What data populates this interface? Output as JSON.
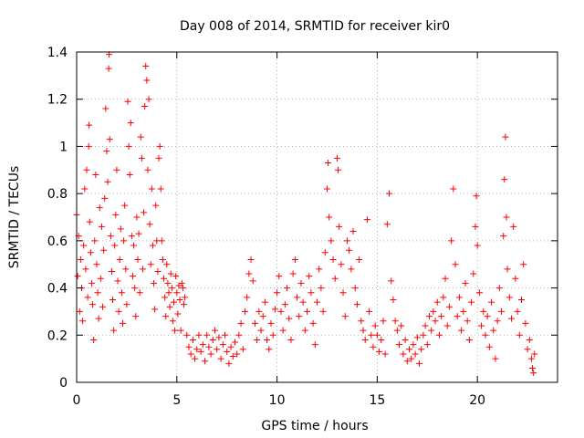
{
  "chart_data": {
    "type": "scatter",
    "title": "Day 008 of 2014, SRMTID for receiver kir0",
    "xlabel": "GPS time / hours",
    "ylabel": "SRMTID / TECUs",
    "xlim": [
      0,
      24
    ],
    "ylim": [
      0,
      1.4
    ],
    "xticks": [
      0,
      5,
      10,
      15,
      20
    ],
    "xtick_labels": [
      "0",
      "5",
      "10",
      "15",
      "20"
    ],
    "yticks": [
      0,
      0.2,
      0.4,
      0.6,
      0.8,
      1,
      1.2,
      1.4
    ],
    "ytick_labels": [
      "0",
      "0.2",
      "0.4",
      "0.6",
      "0.8",
      "1",
      "1.2",
      "1.4"
    ],
    "grid": true,
    "marker": "+",
    "color": "#ff0000",
    "series": [
      {
        "name": "SRMTID",
        "points": [
          [
            0.0,
            0.71
          ],
          [
            0.05,
            0.45
          ],
          [
            0.1,
            0.62
          ],
          [
            0.15,
            0.3
          ],
          [
            0.2,
            0.52
          ],
          [
            0.25,
            0.4
          ],
          [
            0.3,
            0.26
          ],
          [
            0.35,
            0.58
          ],
          [
            0.4,
            0.82
          ],
          [
            0.45,
            0.48
          ],
          [
            0.5,
            0.9
          ],
          [
            0.55,
            0.36
          ],
          [
            0.6,
            1.0
          ],
          [
            0.62,
            1.09
          ],
          [
            0.65,
            0.68
          ],
          [
            0.7,
            0.55
          ],
          [
            0.75,
            0.42
          ],
          [
            0.8,
            0.33
          ],
          [
            0.85,
            0.18
          ],
          [
            0.9,
            0.6
          ],
          [
            0.95,
            0.88
          ],
          [
            1.0,
            0.5
          ],
          [
            1.05,
            0.38
          ],
          [
            1.1,
            0.27
          ],
          [
            1.15,
            0.74
          ],
          [
            1.2,
            0.44
          ],
          [
            1.25,
            0.66
          ],
          [
            1.3,
            0.32
          ],
          [
            1.35,
            0.56
          ],
          [
            1.4,
            0.78
          ],
          [
            1.45,
            1.16
          ],
          [
            1.5,
            0.98
          ],
          [
            1.55,
            0.85
          ],
          [
            1.6,
            1.33
          ],
          [
            1.62,
            1.39
          ],
          [
            1.65,
            1.03
          ],
          [
            1.7,
            0.62
          ],
          [
            1.75,
            0.47
          ],
          [
            1.8,
            0.35
          ],
          [
            1.85,
            0.22
          ],
          [
            1.9,
            0.58
          ],
          [
            1.95,
            0.71
          ],
          [
            2.0,
            0.9
          ],
          [
            2.05,
            0.43
          ],
          [
            2.1,
            0.3
          ],
          [
            2.15,
            0.52
          ],
          [
            2.2,
            0.65
          ],
          [
            2.25,
            0.38
          ],
          [
            2.3,
            0.25
          ],
          [
            2.35,
            0.6
          ],
          [
            2.4,
            0.75
          ],
          [
            2.45,
            0.48
          ],
          [
            2.5,
            0.33
          ],
          [
            2.55,
            1.19
          ],
          [
            2.6,
            1.0
          ],
          [
            2.65,
            0.88
          ],
          [
            2.7,
            1.1
          ],
          [
            2.75,
            0.62
          ],
          [
            2.8,
            0.45
          ],
          [
            2.85,
            0.58
          ],
          [
            2.9,
            0.4
          ],
          [
            2.95,
            0.28
          ],
          [
            3.0,
            0.7
          ],
          [
            3.05,
            0.52
          ],
          [
            3.1,
            0.63
          ],
          [
            3.15,
            0.38
          ],
          [
            3.2,
            1.04
          ],
          [
            3.25,
            0.95
          ],
          [
            3.3,
            0.48
          ],
          [
            3.35,
            0.72
          ],
          [
            3.4,
            1.17
          ],
          [
            3.45,
            1.34
          ],
          [
            3.5,
            1.28
          ],
          [
            3.55,
            0.9
          ],
          [
            3.6,
            1.2
          ],
          [
            3.65,
            0.67
          ],
          [
            3.7,
            0.5
          ],
          [
            3.75,
            0.82
          ],
          [
            3.8,
            0.58
          ],
          [
            3.85,
            0.42
          ],
          [
            3.9,
            0.31
          ],
          [
            3.95,
            0.75
          ],
          [
            4.0,
            0.6
          ],
          [
            4.05,
            0.47
          ],
          [
            4.1,
            0.95
          ],
          [
            4.15,
            1.0
          ],
          [
            4.2,
            0.82
          ],
          [
            4.25,
            0.6
          ],
          [
            4.3,
            0.52
          ],
          [
            4.35,
            0.44
          ],
          [
            4.4,
            0.36
          ],
          [
            4.45,
            0.28
          ],
          [
            4.5,
            0.5
          ],
          [
            4.55,
            0.42
          ],
          [
            4.6,
            0.38
          ],
          [
            4.65,
            0.32
          ],
          [
            4.7,
            0.46
          ],
          [
            4.75,
            0.4
          ],
          [
            4.8,
            0.26
          ],
          [
            4.85,
            0.34
          ],
          [
            4.9,
            0.22
          ],
          [
            4.95,
            0.45
          ],
          [
            5.0,
            0.38
          ],
          [
            5.05,
            0.29
          ],
          [
            5.1,
            0.41
          ],
          [
            5.15,
            0.35
          ],
          [
            5.2,
            0.22
          ],
          [
            5.25,
            0.42
          ],
          [
            5.3,
            0.4
          ],
          [
            5.35,
            0.33
          ],
          [
            5.4,
            0.36
          ],
          [
            5.5,
            0.2
          ],
          [
            5.6,
            0.15
          ],
          [
            5.7,
            0.12
          ],
          [
            5.8,
            0.18
          ],
          [
            5.9,
            0.1
          ],
          [
            6.0,
            0.14
          ],
          [
            6.1,
            0.2
          ],
          [
            6.2,
            0.13
          ],
          [
            6.3,
            0.16
          ],
          [
            6.4,
            0.09
          ],
          [
            6.5,
            0.2
          ],
          [
            6.6,
            0.15
          ],
          [
            6.7,
            0.12
          ],
          [
            6.8,
            0.18
          ],
          [
            6.9,
            0.22
          ],
          [
            7.0,
            0.14
          ],
          [
            7.1,
            0.19
          ],
          [
            7.2,
            0.1
          ],
          [
            7.3,
            0.16
          ],
          [
            7.4,
            0.2
          ],
          [
            7.5,
            0.13
          ],
          [
            7.6,
            0.08
          ],
          [
            7.7,
            0.15
          ],
          [
            7.8,
            0.11
          ],
          [
            7.9,
            0.17
          ],
          [
            8.0,
            0.12
          ],
          [
            8.1,
            0.2
          ],
          [
            8.2,
            0.25
          ],
          [
            8.3,
            0.14
          ],
          [
            8.4,
            0.3
          ],
          [
            8.5,
            0.36
          ],
          [
            8.6,
            0.46
          ],
          [
            8.7,
            0.52
          ],
          [
            8.8,
            0.43
          ],
          [
            8.9,
            0.25
          ],
          [
            9.0,
            0.18
          ],
          [
            9.1,
            0.3
          ],
          [
            9.2,
            0.22
          ],
          [
            9.3,
            0.28
          ],
          [
            9.4,
            0.34
          ],
          [
            9.5,
            0.18
          ],
          [
            9.6,
            0.14
          ],
          [
            9.7,
            0.25
          ],
          [
            9.8,
            0.2
          ],
          [
            9.9,
            0.31
          ],
          [
            10.0,
            0.38
          ],
          [
            10.1,
            0.45
          ],
          [
            10.2,
            0.3
          ],
          [
            10.3,
            0.22
          ],
          [
            10.4,
            0.33
          ],
          [
            10.5,
            0.4
          ],
          [
            10.6,
            0.27
          ],
          [
            10.7,
            0.18
          ],
          [
            10.8,
            0.46
          ],
          [
            10.9,
            0.52
          ],
          [
            11.0,
            0.36
          ],
          [
            11.1,
            0.28
          ],
          [
            11.2,
            0.42
          ],
          [
            11.3,
            0.34
          ],
          [
            11.4,
            0.22
          ],
          [
            11.5,
            0.3
          ],
          [
            11.6,
            0.45
          ],
          [
            11.7,
            0.38
          ],
          [
            11.8,
            0.25
          ],
          [
            11.9,
            0.16
          ],
          [
            12.0,
            0.34
          ],
          [
            12.1,
            0.48
          ],
          [
            12.2,
            0.4
          ],
          [
            12.3,
            0.3
          ],
          [
            12.4,
            0.55
          ],
          [
            12.5,
            0.82
          ],
          [
            12.55,
            0.93
          ],
          [
            12.6,
            0.7
          ],
          [
            12.7,
            0.6
          ],
          [
            12.8,
            0.52
          ],
          [
            12.9,
            0.44
          ],
          [
            13.0,
            0.95
          ],
          [
            13.05,
            0.9
          ],
          [
            13.1,
            0.66
          ],
          [
            13.2,
            0.5
          ],
          [
            13.3,
            0.38
          ],
          [
            13.4,
            0.28
          ],
          [
            13.5,
            0.6
          ],
          [
            13.6,
            0.56
          ],
          [
            13.7,
            0.48
          ],
          [
            13.8,
            0.64
          ],
          [
            13.9,
            0.4
          ],
          [
            14.0,
            0.33
          ],
          [
            14.1,
            0.52
          ],
          [
            14.2,
            0.26
          ],
          [
            14.3,
            0.22
          ],
          [
            14.4,
            0.18
          ],
          [
            14.5,
            0.69
          ],
          [
            14.6,
            0.3
          ],
          [
            14.7,
            0.2
          ],
          [
            14.8,
            0.15
          ],
          [
            14.9,
            0.24
          ],
          [
            15.0,
            0.2
          ],
          [
            15.1,
            0.13
          ],
          [
            15.2,
            0.18
          ],
          [
            15.3,
            0.26
          ],
          [
            15.4,
            0.12
          ],
          [
            15.5,
            0.67
          ],
          [
            15.6,
            0.8
          ],
          [
            15.7,
            0.43
          ],
          [
            15.8,
            0.35
          ],
          [
            15.9,
            0.26
          ],
          [
            16.0,
            0.22
          ],
          [
            16.1,
            0.16
          ],
          [
            16.2,
            0.24
          ],
          [
            16.3,
            0.12
          ],
          [
            16.4,
            0.18
          ],
          [
            16.5,
            0.09
          ],
          [
            16.6,
            0.14
          ],
          [
            16.7,
            0.1
          ],
          [
            16.8,
            0.16
          ],
          [
            16.9,
            0.12
          ],
          [
            17.0,
            0.19
          ],
          [
            17.1,
            0.08
          ],
          [
            17.2,
            0.14
          ],
          [
            17.3,
            0.2
          ],
          [
            17.4,
            0.24
          ],
          [
            17.5,
            0.16
          ],
          [
            17.6,
            0.28
          ],
          [
            17.7,
            0.22
          ],
          [
            17.8,
            0.3
          ],
          [
            17.9,
            0.26
          ],
          [
            18.0,
            0.34
          ],
          [
            18.1,
            0.2
          ],
          [
            18.2,
            0.28
          ],
          [
            18.3,
            0.36
          ],
          [
            18.4,
            0.44
          ],
          [
            18.5,
            0.24
          ],
          [
            18.6,
            0.32
          ],
          [
            18.7,
            0.6
          ],
          [
            18.8,
            0.82
          ],
          [
            18.9,
            0.5
          ],
          [
            19.0,
            0.28
          ],
          [
            19.1,
            0.36
          ],
          [
            19.2,
            0.22
          ],
          [
            19.3,
            0.3
          ],
          [
            19.4,
            0.42
          ],
          [
            19.5,
            0.26
          ],
          [
            19.6,
            0.18
          ],
          [
            19.7,
            0.34
          ],
          [
            19.8,
            0.46
          ],
          [
            19.9,
            0.66
          ],
          [
            19.95,
            0.79
          ],
          [
            20.0,
            0.58
          ],
          [
            20.1,
            0.38
          ],
          [
            20.2,
            0.24
          ],
          [
            20.3,
            0.3
          ],
          [
            20.4,
            0.2
          ],
          [
            20.5,
            0.28
          ],
          [
            20.6,
            0.15
          ],
          [
            20.7,
            0.34
          ],
          [
            20.8,
            0.22
          ],
          [
            20.9,
            0.1
          ],
          [
            21.0,
            0.26
          ],
          [
            21.1,
            0.4
          ],
          [
            21.2,
            0.3
          ],
          [
            21.3,
            0.62
          ],
          [
            21.35,
            0.86
          ],
          [
            21.4,
            1.04
          ],
          [
            21.45,
            0.7
          ],
          [
            21.5,
            0.48
          ],
          [
            21.6,
            0.36
          ],
          [
            21.7,
            0.27
          ],
          [
            21.8,
            0.66
          ],
          [
            21.9,
            0.44
          ],
          [
            22.0,
            0.3
          ],
          [
            22.1,
            0.2
          ],
          [
            22.2,
            0.35
          ],
          [
            22.3,
            0.5
          ],
          [
            22.4,
            0.25
          ],
          [
            22.5,
            0.14
          ],
          [
            22.6,
            0.18
          ],
          [
            22.7,
            0.1
          ],
          [
            22.75,
            0.06
          ],
          [
            22.8,
            0.04
          ],
          [
            22.85,
            0.12
          ]
        ]
      }
    ]
  }
}
